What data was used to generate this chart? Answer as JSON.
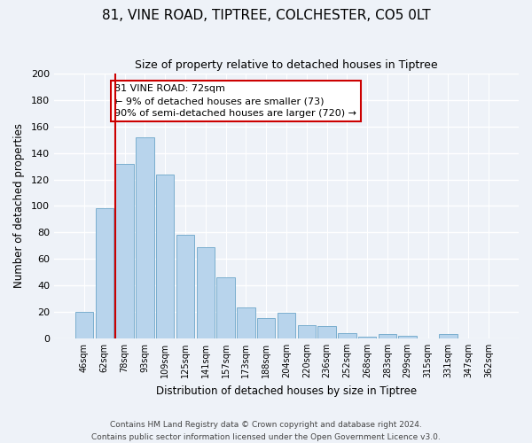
{
  "title": "81, VINE ROAD, TIPTREE, COLCHESTER, CO5 0LT",
  "subtitle": "Size of property relative to detached houses in Tiptree",
  "xlabel": "Distribution of detached houses by size in Tiptree",
  "ylabel": "Number of detached properties",
  "bar_labels": [
    "46sqm",
    "62sqm",
    "78sqm",
    "93sqm",
    "109sqm",
    "125sqm",
    "141sqm",
    "157sqm",
    "173sqm",
    "188sqm",
    "204sqm",
    "220sqm",
    "236sqm",
    "252sqm",
    "268sqm",
    "283sqm",
    "299sqm",
    "315sqm",
    "331sqm",
    "347sqm",
    "362sqm"
  ],
  "bar_values": [
    20,
    98,
    132,
    152,
    124,
    78,
    69,
    46,
    23,
    15,
    19,
    10,
    9,
    4,
    1,
    3,
    2,
    0,
    3,
    0,
    0
  ],
  "bar_color": "#b8d4ec",
  "bar_edge_color": "#7aaece",
  "vline_x_index": 2,
  "vline_color": "#cc0000",
  "annotation_text": "81 VINE ROAD: 72sqm\n← 9% of detached houses are smaller (73)\n90% of semi-detached houses are larger (720) →",
  "annotation_box_edgecolor": "#cc0000",
  "annotation_box_facecolor": "#ffffff",
  "ylim": [
    0,
    200
  ],
  "yticks": [
    0,
    20,
    40,
    60,
    80,
    100,
    120,
    140,
    160,
    180,
    200
  ],
  "footer_line1": "Contains HM Land Registry data © Crown copyright and database right 2024.",
  "footer_line2": "Contains public sector information licensed under the Open Government Licence v3.0.",
  "bg_color": "#eef2f8"
}
